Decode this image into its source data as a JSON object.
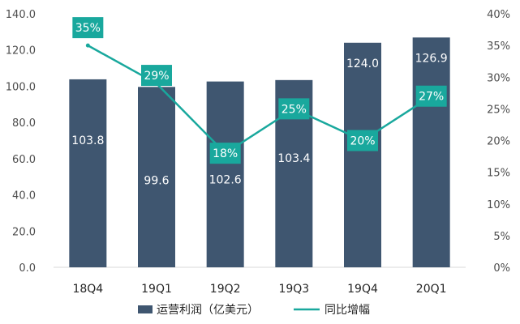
{
  "colors": {
    "bar": "#3f5670",
    "line": "#19a89d",
    "label_box": "#19a89d",
    "axis": "#d9d9d9",
    "tick_text": "#4d4d4d",
    "background": "#ffffff"
  },
  "chart_data": {
    "type": "bar",
    "categories": [
      "18Q4",
      "19Q1",
      "19Q2",
      "19Q3",
      "19Q4",
      "20Q1"
    ],
    "series": [
      {
        "name": "运营利润（亿美元）",
        "type": "bar",
        "axis": "left",
        "values": [
          103.8,
          99.6,
          102.6,
          103.4,
          124.0,
          126.9
        ],
        "labels": [
          "103.8",
          "99.6",
          "102.6",
          "103.4",
          "124.0",
          "126.9"
        ]
      },
      {
        "name": "同比增幅",
        "type": "line",
        "axis": "right",
        "values": [
          35,
          29,
          18,
          25,
          20,
          27
        ],
        "labels": [
          "35%",
          "29%",
          "18%",
          "25%",
          "20%",
          "27%"
        ]
      }
    ],
    "y_left": {
      "range": [
        0,
        140
      ],
      "ticks": [
        0,
        20,
        40,
        60,
        80,
        100,
        120,
        140
      ],
      "tick_labels": [
        "0.0",
        "20.0",
        "40.0",
        "60.0",
        "80.0",
        "100.0",
        "120.0",
        "140.0"
      ]
    },
    "y_right": {
      "range": [
        0,
        40
      ],
      "ticks": [
        0,
        5,
        10,
        15,
        20,
        25,
        30,
        35,
        40
      ],
      "tick_labels": [
        "0%",
        "5%",
        "10%",
        "15%",
        "20%",
        "25%",
        "30%",
        "35%",
        "40%"
      ]
    },
    "grid": false,
    "legend_position": "bottom"
  }
}
